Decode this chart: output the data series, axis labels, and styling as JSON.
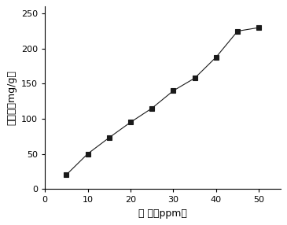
{
  "x": [
    5,
    10,
    15,
    20,
    25,
    30,
    35,
    40,
    45,
    50
  ],
  "y": [
    20,
    50,
    73,
    95,
    115,
    140,
    158,
    188,
    225,
    230
  ],
  "xlabel": "浓 度（ppm）",
  "ylabel": "吸附量（mg/g）",
  "xlim": [
    0,
    55
  ],
  "ylim": [
    0,
    260
  ],
  "xticks": [
    0,
    10,
    20,
    30,
    40,
    50
  ],
  "yticks": [
    0,
    50,
    100,
    150,
    200,
    250
  ],
  "marker": "s",
  "marker_size": 4,
  "line_color": "#1a1a1a",
  "marker_color": "#1a1a1a",
  "line_style": "-",
  "line_width": 0.8
}
